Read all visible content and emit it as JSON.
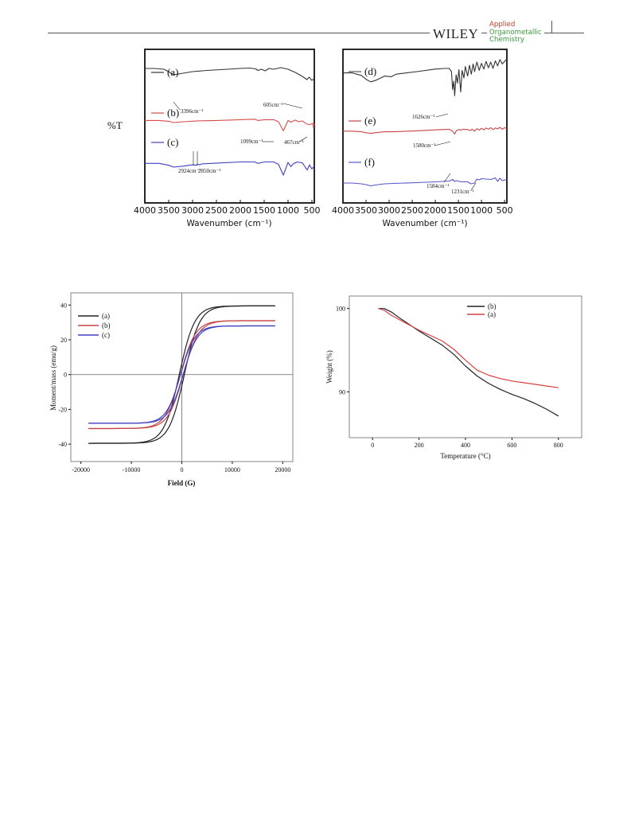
{
  "header": {
    "publisher": "WILEY",
    "journal_lines": [
      "Applied",
      "Organometallic",
      "Chemistry"
    ]
  },
  "ir_left": {
    "ylabel": "%T",
    "xlabel": "Wavenumber (cm⁻¹)",
    "xticks": [
      "4000",
      "3500",
      "3000",
      "2500",
      "2000",
      "1500",
      "1000",
      "500"
    ],
    "series_labels": [
      "(a)",
      "(b)",
      "(c)"
    ],
    "annotations": [
      "3396cm⁻¹",
      "605cm⁻¹",
      "1099cm⁻¹",
      "467cm⁻¹",
      "2924cm⁻¹",
      "2850cm⁻¹"
    ]
  },
  "ir_right": {
    "xlabel": "Wavenumber (cm⁻¹)",
    "xticks": [
      "4000",
      "3500",
      "3000",
      "2500",
      "2000",
      "1500",
      "1000",
      "500"
    ],
    "series_labels": [
      "(d)",
      "(e)",
      "(f)"
    ],
    "annotations": [
      "1626cm⁻¹",
      "1580cm⁻¹",
      "1584cm⁻¹",
      "1231cm⁻¹"
    ]
  },
  "chart_data": [
    {
      "type": "line",
      "xlabel": "Wavenumber (cm⁻¹)",
      "ylabel": "%T",
      "xlim": [
        4000,
        450
      ],
      "x_reversed": true,
      "series": [
        {
          "name": "(a)",
          "color": "#333333",
          "points": [
            [
              4000,
              92
            ],
            [
              3800,
              92
            ],
            [
              3600,
              90
            ],
            [
              3500,
              84
            ],
            [
              3396,
              76
            ],
            [
              3250,
              79
            ],
            [
              3000,
              84
            ],
            [
              2700,
              87
            ],
            [
              2400,
              89
            ],
            [
              2000,
              92
            ],
            [
              1800,
              93
            ],
            [
              1680,
              91
            ],
            [
              1630,
              87
            ],
            [
              1560,
              90
            ],
            [
              1480,
              86
            ],
            [
              1400,
              92
            ],
            [
              1300,
              90
            ],
            [
              1150,
              94
            ],
            [
              1000,
              90
            ],
            [
              850,
              82
            ],
            [
              700,
              72
            ],
            [
              605,
              64
            ],
            [
              560,
              70
            ],
            [
              500,
              62
            ],
            [
              450,
              67
            ]
          ]
        },
        {
          "name": "(b)",
          "color": "#d94b4b",
          "points": [
            [
              4000,
              55
            ],
            [
              3700,
              55
            ],
            [
              3500,
              53
            ],
            [
              3396,
              50
            ],
            [
              3200,
              52
            ],
            [
              2900,
              54
            ],
            [
              2500,
              55
            ],
            [
              2000,
              57
            ],
            [
              1700,
              58
            ],
            [
              1630,
              55
            ],
            [
              1500,
              57
            ],
            [
              1300,
              57
            ],
            [
              1200,
              52
            ],
            [
              1099,
              30
            ],
            [
              1000,
              55
            ],
            [
              940,
              51
            ],
            [
              850,
              56
            ],
            [
              780,
              52
            ],
            [
              700,
              54
            ],
            [
              620,
              47
            ],
            [
              550,
              45
            ],
            [
              480,
              48
            ],
            [
              467,
              37
            ],
            [
              450,
              48
            ]
          ]
        },
        {
          "name": "(c)",
          "color": "#4040c0",
          "points": [
            [
              4000,
              30
            ],
            [
              3700,
              30
            ],
            [
              3500,
              26
            ],
            [
              3396,
              22
            ],
            [
              3200,
              24
            ],
            [
              3000,
              27
            ],
            [
              2924,
              26
            ],
            [
              2900,
              28
            ],
            [
              2850,
              27
            ],
            [
              2800,
              29
            ],
            [
              2400,
              31
            ],
            [
              2000,
              33
            ],
            [
              1700,
              33
            ],
            [
              1630,
              30
            ],
            [
              1500,
              33
            ],
            [
              1300,
              33
            ],
            [
              1200,
              28
            ],
            [
              1099,
              5
            ],
            [
              1000,
              32
            ],
            [
              940,
              23
            ],
            [
              880,
              30
            ],
            [
              800,
              33
            ],
            [
              700,
              31
            ],
            [
              600,
              16
            ],
            [
              550,
              27
            ],
            [
              500,
              18
            ],
            [
              450,
              25
            ]
          ]
        }
      ]
    },
    {
      "type": "line",
      "xlabel": "Wavenumber (cm⁻¹)",
      "xlim": [
        4000,
        450
      ],
      "x_reversed": true,
      "series": [
        {
          "name": "(d)",
          "color": "#333333",
          "points": [
            [
              4000,
              78
            ],
            [
              3800,
              78
            ],
            [
              3600,
              74
            ],
            [
              3500,
              68
            ],
            [
              3400,
              64
            ],
            [
              3300,
              66
            ],
            [
              3100,
              73
            ],
            [
              2950,
              72
            ],
            [
              2850,
              76
            ],
            [
              2400,
              80
            ],
            [
              2000,
              84
            ],
            [
              1800,
              85
            ],
            [
              1700,
              85
            ],
            [
              1650,
              80
            ],
            [
              1626,
              52
            ],
            [
              1600,
              65
            ],
            [
              1580,
              42
            ],
            [
              1550,
              75
            ],
            [
              1520,
              62
            ],
            [
              1490,
              83
            ],
            [
              1450,
              48
            ],
            [
              1420,
              82
            ],
            [
              1380,
              70
            ],
            [
              1350,
              88
            ],
            [
              1300,
              73
            ],
            [
              1260,
              90
            ],
            [
              1220,
              76
            ],
            [
              1180,
              92
            ],
            [
              1150,
              80
            ],
            [
              1100,
              95
            ],
            [
              1050,
              82
            ],
            [
              1000,
              93
            ],
            [
              950,
              84
            ],
            [
              900,
              96
            ],
            [
              850,
              86
            ],
            [
              800,
              95
            ],
            [
              750,
              85
            ],
            [
              700,
              97
            ],
            [
              650,
              89
            ],
            [
              600,
              99
            ],
            [
              550,
              92
            ],
            [
              450,
              100
            ]
          ]
        },
        {
          "name": "(e)",
          "color": "#c74545",
          "points": [
            [
              4000,
              38
            ],
            [
              3800,
              38
            ],
            [
              3600,
              36
            ],
            [
              3500,
              33
            ],
            [
              3400,
              31
            ],
            [
              3300,
              33
            ],
            [
              3100,
              36
            ],
            [
              2900,
              36
            ],
            [
              2400,
              39
            ],
            [
              2000,
              42
            ],
            [
              1700,
              44
            ],
            [
              1626,
              38
            ],
            [
              1600,
              33
            ],
            [
              1580,
              29
            ],
            [
              1540,
              40
            ],
            [
              1480,
              43
            ],
            [
              1450,
              41
            ],
            [
              1400,
              44
            ],
            [
              1300,
              43
            ],
            [
              1250,
              40
            ],
            [
              1200,
              44
            ],
            [
              1150,
              38
            ],
            [
              1100,
              46
            ],
            [
              1050,
              41
            ],
            [
              1000,
              47
            ],
            [
              950,
              42
            ],
            [
              900,
              48
            ],
            [
              850,
              44
            ],
            [
              800,
              49
            ],
            [
              750,
              43
            ],
            [
              700,
              48
            ],
            [
              650,
              45
            ],
            [
              600,
              50
            ],
            [
              550,
              44
            ],
            [
              500,
              49
            ],
            [
              450,
              46
            ]
          ]
        },
        {
          "name": "(f)",
          "color": "#5555c8",
          "points": [
            [
              4000,
              12
            ],
            [
              3800,
              12
            ],
            [
              3600,
              10
            ],
            [
              3500,
              8
            ],
            [
              3400,
              5
            ],
            [
              3300,
              7
            ],
            [
              3100,
              10
            ],
            [
              2900,
              11
            ],
            [
              2400,
              13
            ],
            [
              2000,
              15
            ],
            [
              1700,
              17
            ],
            [
              1620,
              21
            ],
            [
              1584,
              16
            ],
            [
              1540,
              18
            ],
            [
              1450,
              15
            ],
            [
              1300,
              15
            ],
            [
              1231,
              10
            ],
            [
              1150,
              12
            ],
            [
              1100,
              22
            ],
            [
              1050,
              20
            ],
            [
              1000,
              23
            ],
            [
              900,
              22
            ],
            [
              800,
              21
            ],
            [
              700,
              25
            ],
            [
              650,
              16
            ],
            [
              600,
              24
            ],
            [
              550,
              18
            ],
            [
              450,
              21
            ]
          ]
        }
      ]
    },
    {
      "type": "line",
      "xlabel": "Field (G)",
      "ylabel": "Moment/mass (emu/g)",
      "xlim": [
        -22000,
        22000
      ],
      "ylim": [
        -50,
        47
      ],
      "xticks": [
        -20000,
        -10000,
        0,
        10000,
        20000
      ],
      "yticks": [
        -40,
        -20,
        0,
        20,
        40
      ],
      "legend": "top-left",
      "series": [
        {
          "name": "(a)",
          "color": "#222222",
          "ms": 39.5,
          "hc": 500,
          "h0": 1600
        },
        {
          "name": "(b)",
          "color": "#c94545",
          "ms": 31,
          "hc": 300,
          "h0": 1600
        },
        {
          "name": "(c)",
          "color": "#4040c0",
          "ms": 28,
          "hc": 250,
          "h0": 1500
        }
      ]
    },
    {
      "type": "line",
      "xlabel": "Temperature (°C)",
      "ylabel": "Weight (%)",
      "xlim": [
        -100,
        900
      ],
      "ylim": [
        84.5,
        101.5
      ],
      "xticks": [
        0,
        200,
        400,
        600,
        800
      ],
      "yticks": [
        90,
        100
      ],
      "legend": "top-right",
      "series": [
        {
          "name": "(b)",
          "color": "#222222",
          "points": [
            [
              25,
              100.0
            ],
            [
              50,
              100.0
            ],
            [
              80,
              99.6
            ],
            [
              120,
              98.8
            ],
            [
              200,
              97.3
            ],
            [
              300,
              95.6
            ],
            [
              350,
              94.5
            ],
            [
              400,
              93.1
            ],
            [
              450,
              91.9
            ],
            [
              500,
              91.0
            ],
            [
              550,
              90.3
            ],
            [
              600,
              89.7
            ],
            [
              650,
              89.2
            ],
            [
              700,
              88.6
            ],
            [
              750,
              87.9
            ],
            [
              800,
              87.1
            ]
          ]
        },
        {
          "name": "(a)",
          "color": "#d94040",
          "points": [
            [
              25,
              100.0
            ],
            [
              50,
              99.8
            ],
            [
              80,
              99.2
            ],
            [
              120,
              98.6
            ],
            [
              200,
              97.4
            ],
            [
              300,
              96.1
            ],
            [
              350,
              95.1
            ],
            [
              400,
              93.8
            ],
            [
              450,
              92.6
            ],
            [
              500,
              92.0
            ],
            [
              550,
              91.6
            ],
            [
              600,
              91.3
            ],
            [
              650,
              91.1
            ],
            [
              700,
              90.9
            ],
            [
              750,
              90.7
            ],
            [
              800,
              90.5
            ]
          ]
        }
      ]
    }
  ]
}
